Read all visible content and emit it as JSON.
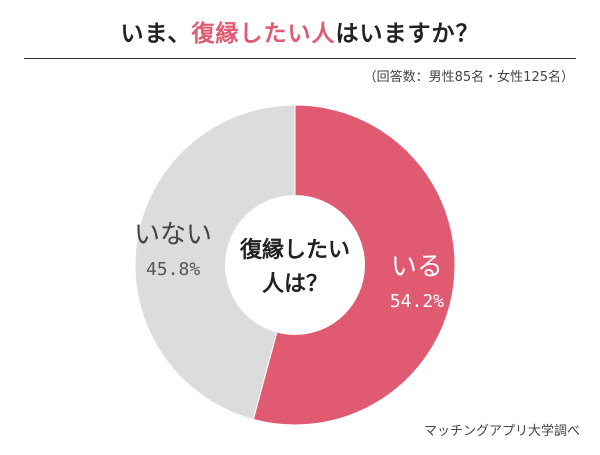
{
  "title": {
    "prefix": "いま、",
    "accent": "復縁したい人",
    "suffix": "はいますか？"
  },
  "subtitle": "（回答数：男性85名・女性125名）",
  "credit": "マッチングアプリ大学調べ",
  "colors": {
    "accent": "#e05a72",
    "gray": "#dcdcdc"
  },
  "chart_data": {
    "type": "pie",
    "title": "いま、復縁したい人はいますか？",
    "center_label": [
      "復縁したい",
      "人は？"
    ],
    "slices": [
      {
        "label": "いる",
        "value": 54.2,
        "value_label": "54.2%",
        "color": "#e05a72"
      },
      {
        "label": "いない",
        "value": 45.8,
        "value_label": "45.8%",
        "color": "#dcdcdc"
      }
    ]
  }
}
